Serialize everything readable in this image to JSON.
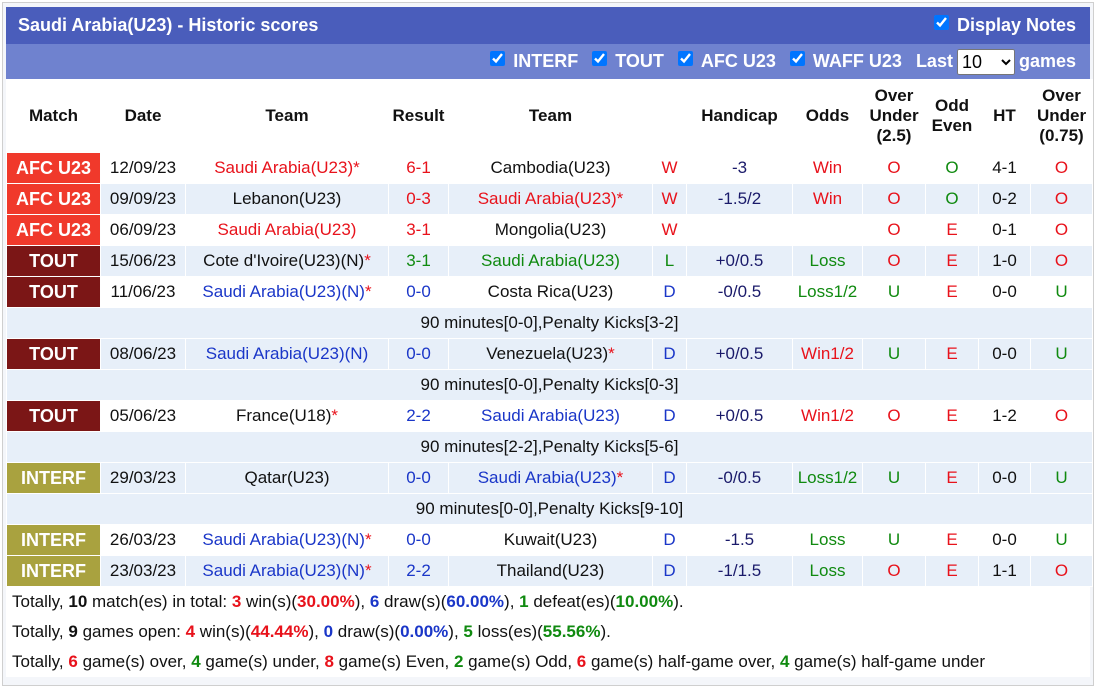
{
  "title": "Saudi Arabia(U23) - Historic scores",
  "display_notes": {
    "label": "Display Notes",
    "checked": true
  },
  "filters": [
    {
      "label": "INTERF",
      "checked": true
    },
    {
      "label": "TOUT",
      "checked": true
    },
    {
      "label": "AFC U23",
      "checked": true
    },
    {
      "label": "WAFF U23",
      "checked": true
    }
  ],
  "last": {
    "label": "Last",
    "value": "10",
    "suffix": "games"
  },
  "columns": [
    "Match",
    "Date",
    "Team",
    "Result",
    "Team",
    null,
    "Handicap",
    "Odds",
    [
      "Over",
      "Under",
      "(2.5)"
    ],
    [
      "Odd",
      "Even"
    ],
    "HT",
    [
      "Over",
      "Under",
      "(0.75)"
    ]
  ],
  "league_colors": {
    "AFC U23": "#f0392b",
    "TOUT": "#7b1616",
    "INTERF": "#a9a23f"
  },
  "outcome_colors": {
    "W": "#e8121b",
    "D": "#1a36c8",
    "L": "#108a10"
  },
  "odds_colors": {
    "Win": "#e8121b",
    "Win1/2": "#e8121b",
    "Loss": "#108a10",
    "Loss1/2": "#108a10"
  },
  "ou_colors": {
    "O": "#e8121b",
    "U": "#108a10"
  },
  "oe_colors": {
    "O": "#108a10",
    "E": "#e8121b"
  },
  "star_color": "#e8121b",
  "matches": [
    {
      "league": "AFC U23",
      "date": "12/09/23",
      "home": {
        "name": "Saudi Arabia(U23)",
        "mark": "*",
        "color": "#e8121b"
      },
      "result": "6-1",
      "away": {
        "name": "Cambodia(U23)"
      },
      "outcome": "W",
      "handicap": "-3",
      "odds": "Win",
      "ou": "O",
      "oe": "O",
      "ht": "4-1",
      "ou75": "O"
    },
    {
      "league": "AFC U23",
      "date": "09/09/23",
      "home": {
        "name": "Lebanon(U23)"
      },
      "result": "0-3",
      "away": {
        "name": "Saudi Arabia(U23)",
        "mark": "*",
        "color": "#e8121b"
      },
      "outcome": "W",
      "handicap": "-1.5/2",
      "odds": "Win",
      "ou": "O",
      "oe": "O",
      "ht": "0-2",
      "ou75": "O"
    },
    {
      "league": "AFC U23",
      "date": "06/09/23",
      "home": {
        "name": "Saudi Arabia(U23)",
        "color": "#e8121b"
      },
      "result": "3-1",
      "away": {
        "name": "Mongolia(U23)"
      },
      "outcome": "W",
      "ou": "O",
      "oe": "E",
      "ht": "0-1",
      "ou75": "O"
    },
    {
      "league": "TOUT",
      "date": "15/06/23",
      "home": {
        "name": "Cote d'Ivoire(U23)(N)",
        "mark": "*"
      },
      "result": "3-1",
      "away": {
        "name": "Saudi Arabia(U23)",
        "color": "#108a10"
      },
      "outcome": "L",
      "handicap": "+0/0.5",
      "odds": "Loss",
      "ou": "O",
      "oe": "E",
      "ht": "1-0",
      "ou75": "O"
    },
    {
      "league": "TOUT",
      "date": "11/06/23",
      "home": {
        "name": "Saudi Arabia(U23)(N)",
        "mark": "*",
        "color": "#1a36c8"
      },
      "result": "0-0",
      "away": {
        "name": "Costa Rica(U23)"
      },
      "outcome": "D",
      "handicap": "-0/0.5",
      "odds": "Loss1/2",
      "ou": "U",
      "oe": "E",
      "ht": "0-0",
      "ou75": "U",
      "note": "90 minutes[0-0],Penalty Kicks[3-2]"
    },
    {
      "league": "TOUT",
      "date": "08/06/23",
      "home": {
        "name": "Saudi Arabia(U23)(N)",
        "color": "#1a36c8"
      },
      "result": "0-0",
      "away": {
        "name": "Venezuela(U23)",
        "mark": "*"
      },
      "outcome": "D",
      "handicap": "+0/0.5",
      "odds": "Win1/2",
      "ou": "U",
      "oe": "E",
      "ht": "0-0",
      "ou75": "U",
      "note": "90 minutes[0-0],Penalty Kicks[0-3]"
    },
    {
      "league": "TOUT",
      "date": "05/06/23",
      "home": {
        "name": "France(U18)",
        "mark": "*"
      },
      "result": "2-2",
      "away": {
        "name": "Saudi Arabia(U23)",
        "color": "#1a36c8"
      },
      "outcome": "D",
      "handicap": "+0/0.5",
      "odds": "Win1/2",
      "ou": "O",
      "oe": "E",
      "ht": "1-2",
      "ou75": "O",
      "note": "90 minutes[2-2],Penalty Kicks[5-6]"
    },
    {
      "league": "INTERF",
      "date": "29/03/23",
      "home": {
        "name": "Qatar(U23)"
      },
      "result": "0-0",
      "away": {
        "name": "Saudi Arabia(U23)",
        "mark": "*",
        "color": "#1a36c8"
      },
      "outcome": "D",
      "handicap": "-0/0.5",
      "odds": "Loss1/2",
      "ou": "U",
      "oe": "E",
      "ht": "0-0",
      "ou75": "U",
      "note": "90 minutes[0-0],Penalty Kicks[9-10]"
    },
    {
      "league": "INTERF",
      "date": "26/03/23",
      "home": {
        "name": "Saudi Arabia(U23)(N)",
        "mark": "*",
        "color": "#1a36c8"
      },
      "result": "0-0",
      "away": {
        "name": "Kuwait(U23)"
      },
      "outcome": "D",
      "handicap": "-1.5",
      "odds": "Loss",
      "ou": "U",
      "oe": "E",
      "ht": "0-0",
      "ou75": "U"
    },
    {
      "league": "INTERF",
      "date": "23/03/23",
      "home": {
        "name": "Saudi Arabia(U23)(N)",
        "mark": "*",
        "color": "#1a36c8"
      },
      "result": "2-2",
      "away": {
        "name": "Thailand(U23)"
      },
      "outcome": "D",
      "handicap": "-1/1.5",
      "odds": "Loss",
      "ou": "O",
      "oe": "E",
      "ht": "1-1",
      "ou75": "O"
    }
  ],
  "summary": [
    [
      "Totally, ",
      {
        "text": "10"
      },
      " match(es) in total: ",
      {
        "text": "3",
        "color": "#e8121b"
      },
      " win(s)(",
      {
        "text": "30.00%",
        "color": "#e8121b"
      },
      "), ",
      {
        "text": "6",
        "color": "#1a36c8"
      },
      " draw(s)(",
      {
        "text": "60.00%",
        "color": "#1a36c8"
      },
      "), ",
      {
        "text": "1",
        "color": "#108a10"
      },
      " defeat(es)(",
      {
        "text": "10.00%",
        "color": "#108a10"
      },
      ")."
    ],
    [
      "Totally, ",
      {
        "text": "9"
      },
      " games open: ",
      {
        "text": "4",
        "color": "#e8121b"
      },
      " win(s)(",
      {
        "text": "44.44%",
        "color": "#e8121b"
      },
      "), ",
      {
        "text": "0",
        "color": "#1a36c8"
      },
      " draw(s)(",
      {
        "text": "0.00%",
        "color": "#1a36c8"
      },
      "), ",
      {
        "text": "5",
        "color": "#108a10"
      },
      " loss(es)(",
      {
        "text": "55.56%",
        "color": "#108a10"
      },
      ")."
    ],
    [
      "Totally, ",
      {
        "text": "6",
        "color": "#e8121b"
      },
      " game(s) over, ",
      {
        "text": "4",
        "color": "#108a10"
      },
      " game(s) under, ",
      {
        "text": "8",
        "color": "#e8121b"
      },
      " game(s) Even, ",
      {
        "text": "2",
        "color": "#108a10"
      },
      " game(s) Odd, ",
      {
        "text": "6",
        "color": "#e8121b"
      },
      " game(s) half-game over, ",
      {
        "text": "4",
        "color": "#108a10"
      },
      " game(s) half-game under"
    ]
  ]
}
